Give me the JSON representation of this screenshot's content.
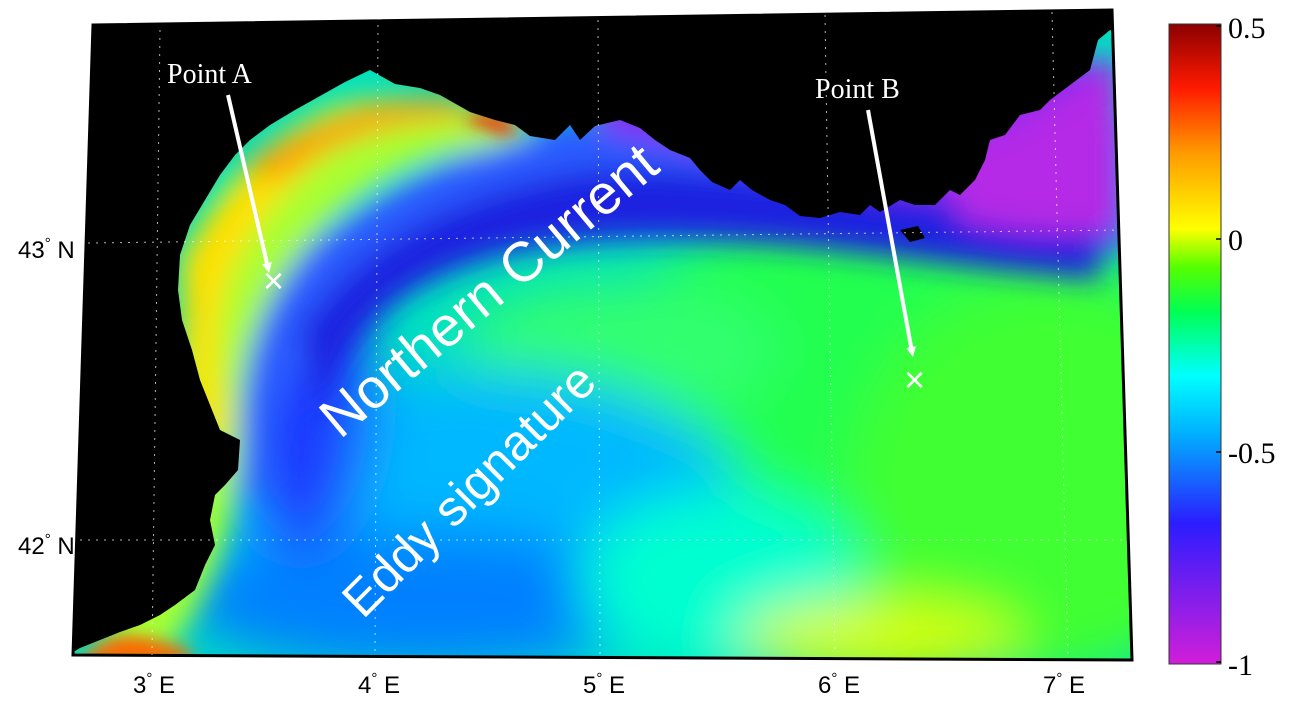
{
  "map": {
    "annotations": {
      "point_a": "Point A",
      "point_b": "Point B",
      "northern_current": "Northern Current",
      "eddy_signature": "Eddy signature"
    },
    "longitude_ticks": [
      "3",
      "4",
      "5",
      "6",
      "7"
    ],
    "longitude_suffix": "E",
    "latitude_ticks": [
      "43",
      "42"
    ],
    "latitude_suffix": "N",
    "degree_symbol": "°",
    "marker_symbol": "×"
  },
  "colorbar": {
    "ticks": [
      "0.5",
      "0",
      "-0.5",
      "-1"
    ],
    "range": [
      -1,
      0.5
    ],
    "colormap": [
      "#d11ed9",
      "#2b1dff",
      "#00ffff",
      "#00ff00",
      "#ffff00",
      "#ff3300",
      "#8b0000"
    ]
  },
  "colors": {
    "land": "#000000",
    "annotation_text": "#ffffff",
    "axis_text": "#000000"
  }
}
